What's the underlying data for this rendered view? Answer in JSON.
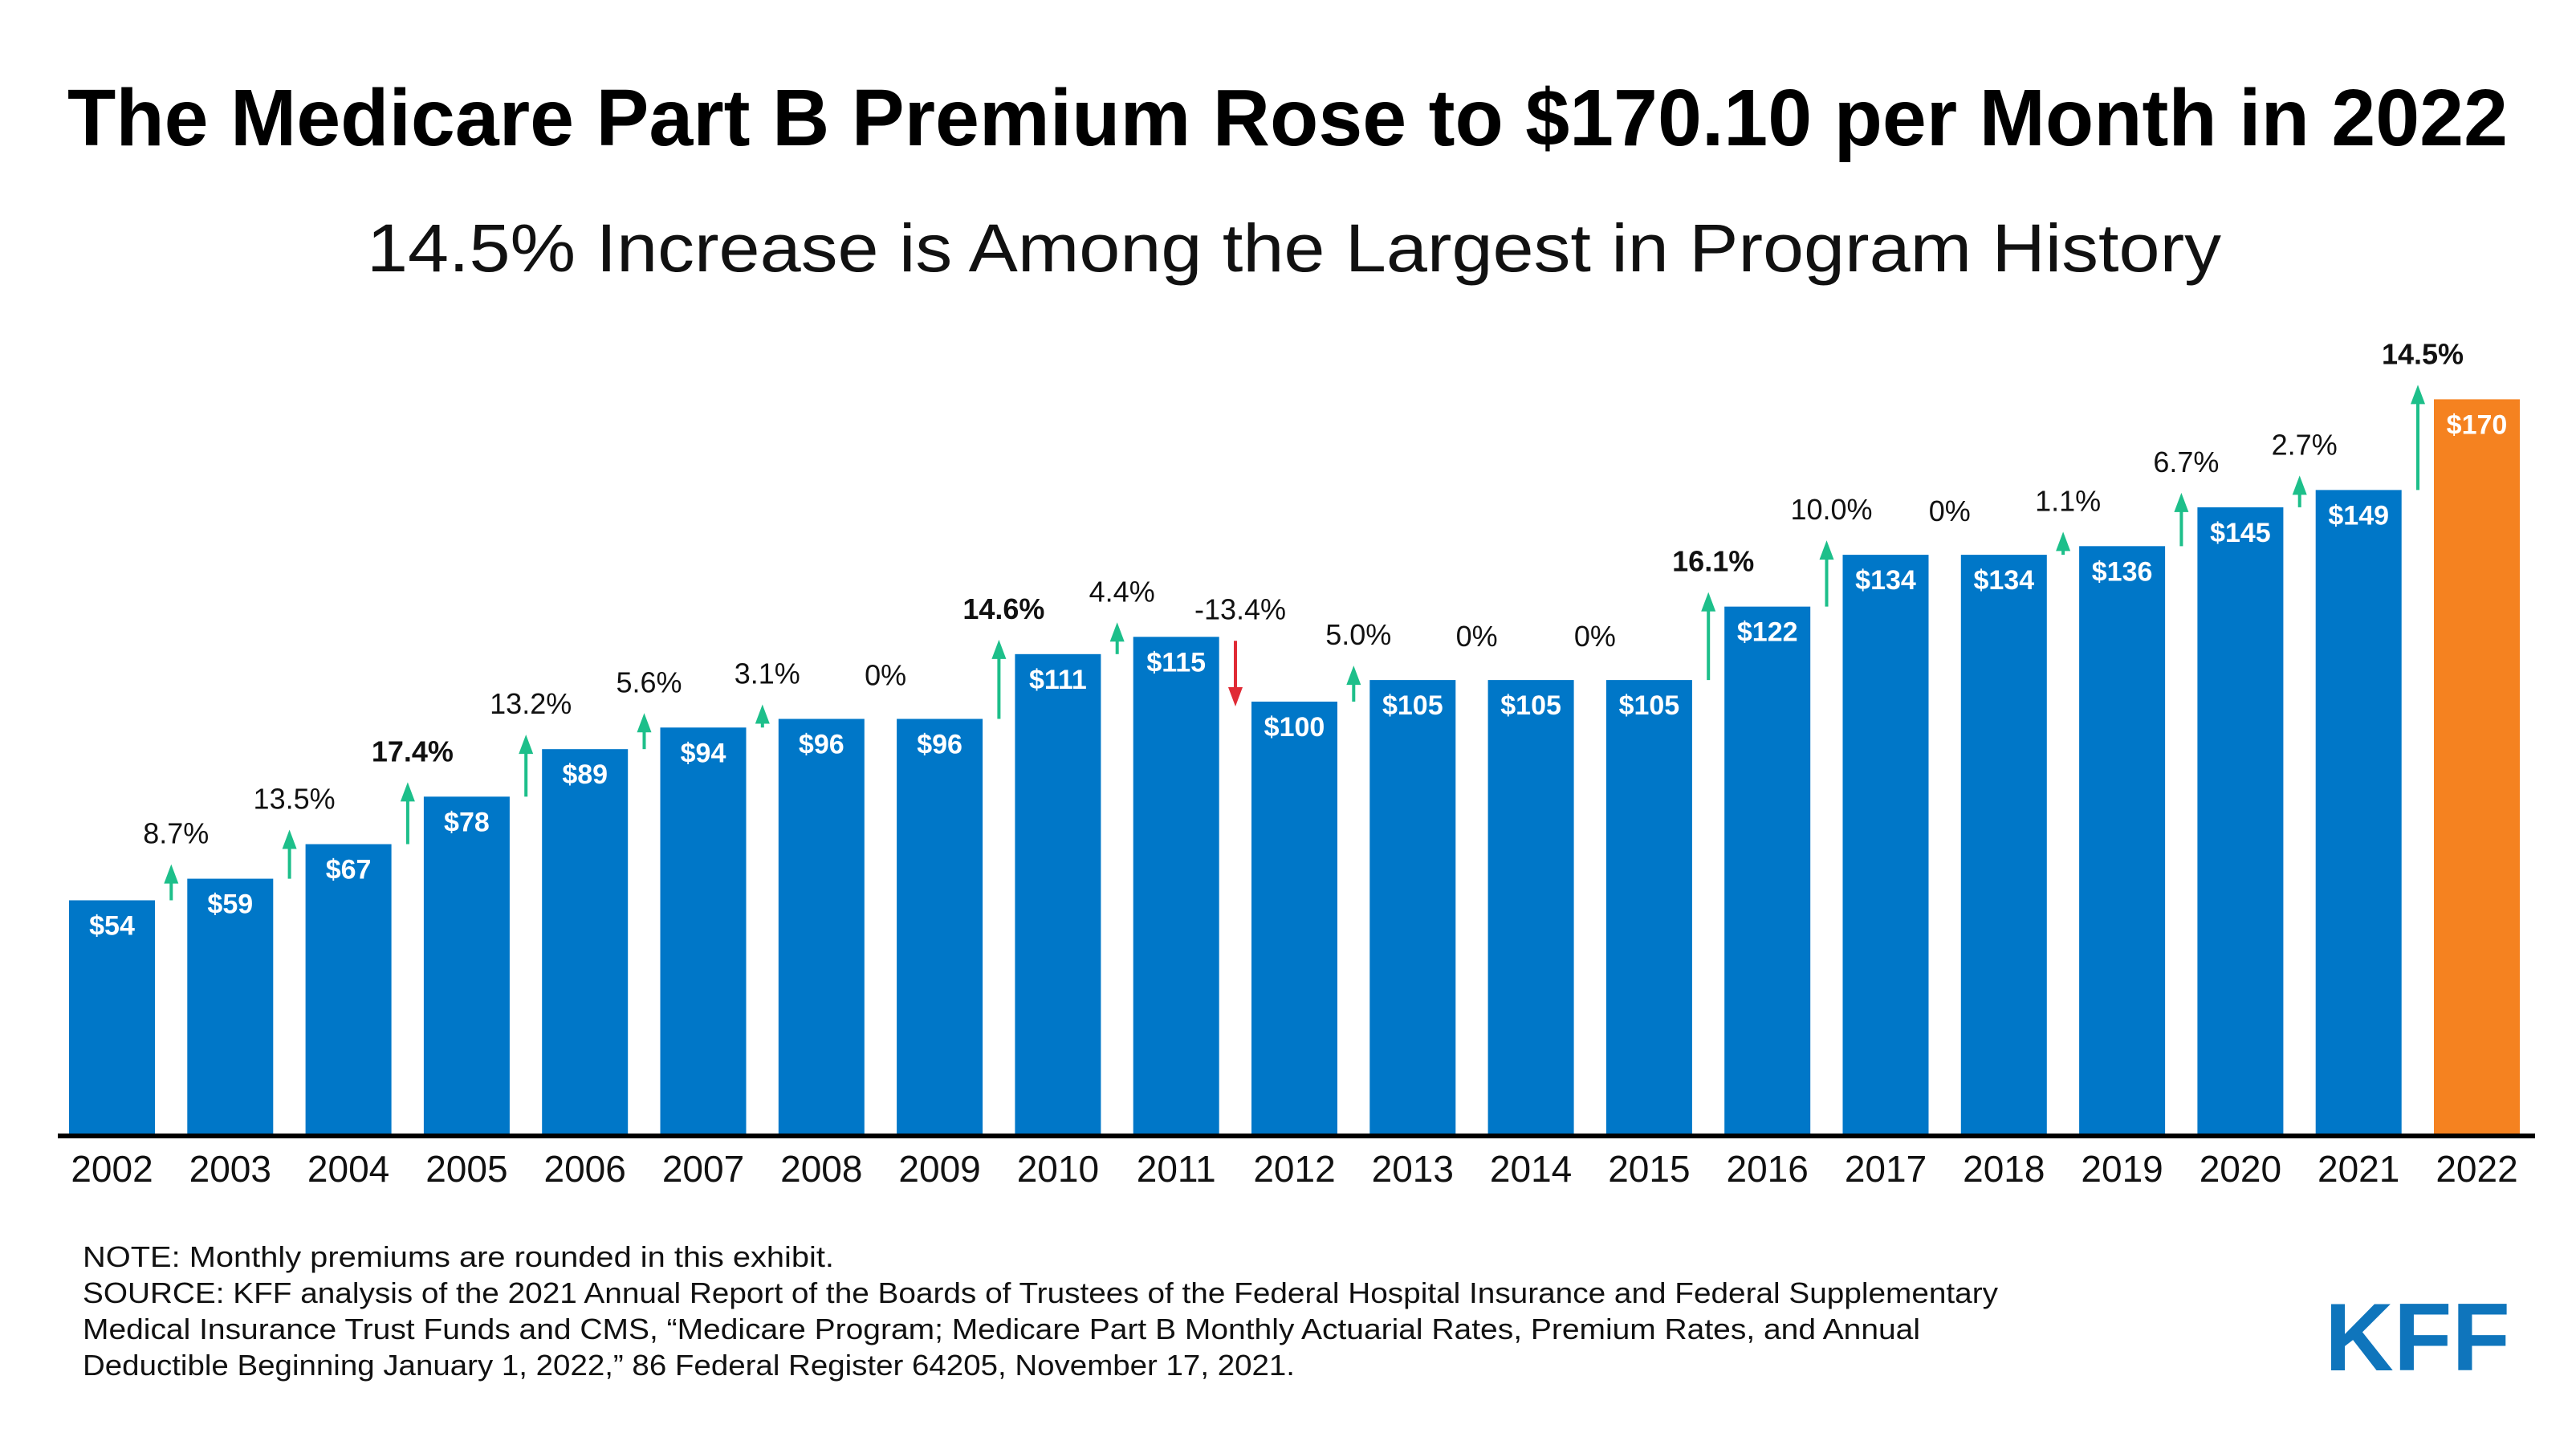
{
  "chart_data": {
    "type": "bar",
    "title": "The Medicare Part B Premium Rose to $170.10 per Month in 2022",
    "subtitle": "14.5% Increase is Among the Largest in Program History",
    "categories": [
      "2002",
      "2003",
      "2004",
      "2005",
      "2006",
      "2007",
      "2008",
      "2009",
      "2010",
      "2011",
      "2012",
      "2013",
      "2014",
      "2015",
      "2016",
      "2017",
      "2018",
      "2019",
      "2020",
      "2021",
      "2022"
    ],
    "values": [
      54,
      59,
      67,
      78,
      89,
      94,
      96,
      96,
      111,
      115,
      100,
      105,
      105,
      105,
      122,
      134,
      134,
      136,
      145,
      149,
      170
    ],
    "value_labels": [
      "$54",
      "$59",
      "$67",
      "$78",
      "$89",
      "$94",
      "$96",
      "$96",
      "$111",
      "$115",
      "$100",
      "$105",
      "$105",
      "$105",
      "$122",
      "$134",
      "$134",
      "$136",
      "$145",
      "$149",
      "$170"
    ],
    "pct_change_labels": [
      null,
      "8.7%",
      "13.5%",
      "17.4%",
      "13.2%",
      "5.6%",
      "3.1%",
      "0%",
      "14.6%",
      "4.4%",
      "-13.4%",
      "5.0%",
      "0%",
      "0%",
      "16.1%",
      "10.0%",
      "0%",
      "1.1%",
      "6.7%",
      "2.7%",
      "14.5%"
    ],
    "bold_pct_labels": [
      "17.4%",
      "14.6%",
      "16.1%",
      "14.5%"
    ],
    "ylim": [
      0,
      175
    ],
    "grid": false,
    "legend": "none",
    "xlabel": "",
    "ylabel": "",
    "colors": {
      "bar": "#0077c8",
      "highlight_bar": "#f58220",
      "increase_arrow": "#1dbf8a",
      "decrease_arrow": "#e02b35"
    },
    "highlight_category": "2022"
  },
  "footnotes": {
    "note": "NOTE: Monthly premiums are rounded in this exhibit.",
    "source_lines": [
      "SOURCE: KFF analysis of the 2021 Annual Report of the Boards of Trustees of the Federal Hospital Insurance and Federal Supplementary",
      "Medical Insurance Trust Funds and CMS, “Medicare Program; Medicare Part B Monthly Actuarial Rates, Premium Rates, and Annual",
      "Deductible Beginning January 1, 2022,” 86 Federal Register 64205, November 17, 2021."
    ]
  },
  "logo": {
    "text": "KFF",
    "color": "#0f75bc"
  }
}
